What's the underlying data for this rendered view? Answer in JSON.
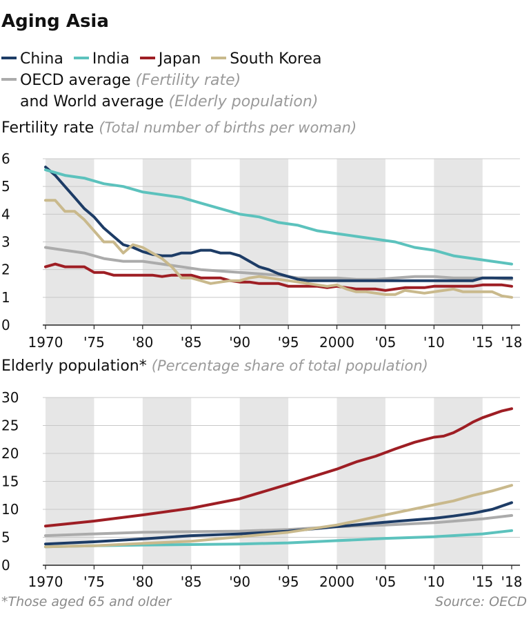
{
  "title": "Aging Asia",
  "legend": {
    "china": "China",
    "india": "India",
    "japan": "Japan",
    "korea": "South Korea",
    "oecd_line1": "OECD average",
    "oecd_line1_note": "(Fertility rate)",
    "oecd_line2": "and World average",
    "oecd_line2_note": "(Elderly population)"
  },
  "colors": {
    "china": "#1d3c66",
    "india": "#5cc2bd",
    "japan": "#9e1e24",
    "korea": "#c9b98c",
    "average": "#ababab",
    "band": "#e6e6e6"
  },
  "fertility_title": "Fertility rate",
  "fertility_subtitle": "(Total number of births per woman)",
  "elderly_title": "Elderly population",
  "elderly_mark": "*",
  "elderly_subtitle": "(Percentage share of total population)",
  "footnote": "*Those aged 65 and older",
  "source": "Source: OECD",
  "chart_data": [
    {
      "type": "line",
      "title": "Fertility rate",
      "subtitle": "(Total number of births per woman)",
      "x_tick_labels": [
        "1970",
        "'75",
        "'80",
        "'85",
        "'90",
        "'95",
        "2000",
        "'05",
        "'10",
        "'15",
        "'18"
      ],
      "x_tick_values": [
        1970,
        1975,
        1980,
        1985,
        1990,
        1995,
        2000,
        2005,
        2010,
        2015,
        2018
      ],
      "y_ticks": [
        "0",
        "1",
        "2",
        "3",
        "4",
        "5",
        "6"
      ],
      "ylim": [
        0,
        6
      ],
      "xlim": [
        1970,
        2018
      ],
      "shaded_bands": [
        [
          1970,
          1975
        ],
        [
          1980,
          1985
        ],
        [
          1990,
          1995
        ],
        [
          2000,
          2005
        ],
        [
          2010,
          2015
        ]
      ],
      "series": [
        {
          "name": "China",
          "color_key": "china",
          "x": [
            1970,
            1971,
            1972,
            1973,
            1974,
            1975,
            1976,
            1977,
            1978,
            1979,
            1980,
            1981,
            1982,
            1983,
            1984,
            1985,
            1986,
            1987,
            1988,
            1989,
            1990,
            1991,
            1992,
            1993,
            1994,
            1995,
            1996,
            1997,
            1998,
            1999,
            2000,
            2001,
            2002,
            2003,
            2004,
            2005,
            2006,
            2007,
            2008,
            2009,
            2010,
            2011,
            2012,
            2013,
            2014,
            2015,
            2016,
            2017,
            2018
          ],
          "y": [
            5.7,
            5.4,
            5.0,
            4.6,
            4.2,
            3.9,
            3.5,
            3.2,
            2.9,
            2.8,
            2.65,
            2.55,
            2.5,
            2.5,
            2.6,
            2.6,
            2.7,
            2.7,
            2.6,
            2.6,
            2.5,
            2.3,
            2.1,
            2.0,
            1.85,
            1.75,
            1.65,
            1.6,
            1.6,
            1.6,
            1.6,
            1.6,
            1.6,
            1.6,
            1.6,
            1.6,
            1.6,
            1.6,
            1.6,
            1.6,
            1.6,
            1.6,
            1.6,
            1.6,
            1.6,
            1.7,
            1.7,
            1.7,
            1.7
          ]
        },
        {
          "name": "India",
          "color_key": "india",
          "x": [
            1970,
            1972,
            1974,
            1976,
            1978,
            1980,
            1982,
            1984,
            1986,
            1988,
            1990,
            1992,
            1994,
            1996,
            1998,
            2000,
            2002,
            2004,
            2006,
            2008,
            2010,
            2012,
            2014,
            2016,
            2018
          ],
          "y": [
            5.6,
            5.4,
            5.3,
            5.1,
            5.0,
            4.8,
            4.7,
            4.6,
            4.4,
            4.2,
            4.0,
            3.9,
            3.7,
            3.6,
            3.4,
            3.3,
            3.2,
            3.1,
            3.0,
            2.8,
            2.7,
            2.5,
            2.4,
            2.3,
            2.2
          ]
        },
        {
          "name": "Japan",
          "color_key": "japan",
          "x": [
            1970,
            1971,
            1972,
            1973,
            1974,
            1975,
            1976,
            1977,
            1978,
            1979,
            1980,
            1981,
            1982,
            1983,
            1984,
            1985,
            1986,
            1987,
            1988,
            1989,
            1990,
            1991,
            1992,
            1993,
            1994,
            1995,
            1996,
            1997,
            1998,
            1999,
            2000,
            2001,
            2002,
            2003,
            2004,
            2005,
            2006,
            2007,
            2008,
            2009,
            2010,
            2011,
            2012,
            2013,
            2014,
            2015,
            2016,
            2017,
            2018
          ],
          "y": [
            2.1,
            2.2,
            2.1,
            2.1,
            2.1,
            1.9,
            1.9,
            1.8,
            1.8,
            1.8,
            1.8,
            1.8,
            1.75,
            1.8,
            1.8,
            1.8,
            1.7,
            1.7,
            1.7,
            1.6,
            1.55,
            1.55,
            1.5,
            1.5,
            1.5,
            1.4,
            1.4,
            1.4,
            1.4,
            1.35,
            1.4,
            1.35,
            1.3,
            1.3,
            1.3,
            1.25,
            1.3,
            1.35,
            1.35,
            1.35,
            1.4,
            1.4,
            1.4,
            1.4,
            1.4,
            1.45,
            1.45,
            1.45,
            1.4
          ]
        },
        {
          "name": "South Korea",
          "color_key": "korea",
          "x": [
            1970,
            1971,
            1972,
            1973,
            1974,
            1975,
            1976,
            1977,
            1978,
            1979,
            1980,
            1981,
            1982,
            1983,
            1984,
            1985,
            1986,
            1987,
            1988,
            1989,
            1990,
            1991,
            1992,
            1993,
            1994,
            1995,
            1996,
            1997,
            1998,
            1999,
            2000,
            2001,
            2002,
            2003,
            2004,
            2005,
            2006,
            2007,
            2008,
            2009,
            2010,
            2011,
            2012,
            2013,
            2014,
            2015,
            2016,
            2017,
            2018
          ],
          "y": [
            4.5,
            4.5,
            4.1,
            4.1,
            3.8,
            3.4,
            3.0,
            3.0,
            2.6,
            2.9,
            2.8,
            2.6,
            2.4,
            2.1,
            1.7,
            1.7,
            1.6,
            1.5,
            1.55,
            1.6,
            1.6,
            1.7,
            1.75,
            1.7,
            1.65,
            1.6,
            1.55,
            1.5,
            1.45,
            1.4,
            1.45,
            1.3,
            1.2,
            1.2,
            1.15,
            1.1,
            1.1,
            1.25,
            1.2,
            1.15,
            1.2,
            1.25,
            1.3,
            1.2,
            1.2,
            1.2,
            1.2,
            1.05,
            1.0
          ]
        },
        {
          "name": "OECD average",
          "color_key": "average",
          "x": [
            1970,
            1972,
            1974,
            1976,
            1978,
            1980,
            1982,
            1984,
            1986,
            1988,
            1990,
            1992,
            1994,
            1996,
            1998,
            2000,
            2002,
            2004,
            2006,
            2008,
            2010,
            2012,
            2014,
            2016,
            2018
          ],
          "y": [
            2.8,
            2.7,
            2.6,
            2.4,
            2.3,
            2.3,
            2.2,
            2.1,
            2.0,
            1.95,
            1.9,
            1.85,
            1.8,
            1.7,
            1.7,
            1.7,
            1.65,
            1.65,
            1.7,
            1.75,
            1.75,
            1.7,
            1.7,
            1.7,
            1.65
          ]
        }
      ]
    },
    {
      "type": "line",
      "title": "Elderly population",
      "subtitle": "(Percentage share of total population)",
      "x_tick_labels": [
        "1970",
        "'75",
        "'80",
        "'85",
        "'90",
        "'95",
        "2000",
        "'05",
        "'10",
        "'15",
        "'18"
      ],
      "x_tick_values": [
        1970,
        1975,
        1980,
        1985,
        1990,
        1995,
        2000,
        2005,
        2010,
        2015,
        2018
      ],
      "y_ticks": [
        "0",
        "5",
        "10",
        "15",
        "20",
        "25",
        "30"
      ],
      "ylim": [
        0,
        30
      ],
      "xlim": [
        1970,
        2018
      ],
      "shaded_bands": [
        [
          1970,
          1975
        ],
        [
          1980,
          1985
        ],
        [
          1990,
          1995
        ],
        [
          2000,
          2005
        ],
        [
          2010,
          2015
        ]
      ],
      "series": [
        {
          "name": "China",
          "color_key": "china",
          "x": [
            1970,
            1975,
            1980,
            1985,
            1990,
            1995,
            2000,
            2005,
            2010,
            2012,
            2014,
            2016,
            2018
          ],
          "y": [
            3.8,
            4.2,
            4.7,
            5.3,
            5.6,
            6.1,
            6.9,
            7.7,
            8.4,
            8.8,
            9.3,
            10.0,
            11.2
          ]
        },
        {
          "name": "India",
          "color_key": "india",
          "x": [
            1970,
            1975,
            1980,
            1985,
            1990,
            1995,
            2000,
            2005,
            2010,
            2015,
            2018
          ],
          "y": [
            3.3,
            3.5,
            3.6,
            3.7,
            3.8,
            4.0,
            4.4,
            4.8,
            5.1,
            5.6,
            6.2
          ]
        },
        {
          "name": "Japan",
          "color_key": "japan",
          "x": [
            1970,
            1975,
            1980,
            1985,
            1990,
            1995,
            2000,
            2002,
            2004,
            2006,
            2008,
            2010,
            2011,
            2012,
            2013,
            2014,
            2015,
            2016,
            2017,
            2018
          ],
          "y": [
            7.0,
            7.9,
            9.0,
            10.2,
            11.9,
            14.5,
            17.2,
            18.5,
            19.5,
            20.8,
            22.0,
            22.9,
            23.1,
            23.7,
            24.6,
            25.6,
            26.4,
            27.0,
            27.6,
            28.0
          ]
        },
        {
          "name": "South Korea",
          "color_key": "korea",
          "x": [
            1970,
            1975,
            1980,
            1985,
            1990,
            1995,
            2000,
            2005,
            2010,
            2012,
            2014,
            2016,
            2018
          ],
          "y": [
            3.3,
            3.5,
            3.9,
            4.3,
            5.1,
            5.9,
            7.2,
            9.0,
            10.8,
            11.5,
            12.5,
            13.3,
            14.3
          ]
        },
        {
          "name": "World average",
          "color_key": "average",
          "x": [
            1970,
            1975,
            1980,
            1985,
            1990,
            1995,
            2000,
            2005,
            2010,
            2015,
            2018
          ],
          "y": [
            5.3,
            5.6,
            5.9,
            6.0,
            6.1,
            6.4,
            6.9,
            7.2,
            7.6,
            8.3,
            8.9
          ]
        }
      ]
    }
  ]
}
